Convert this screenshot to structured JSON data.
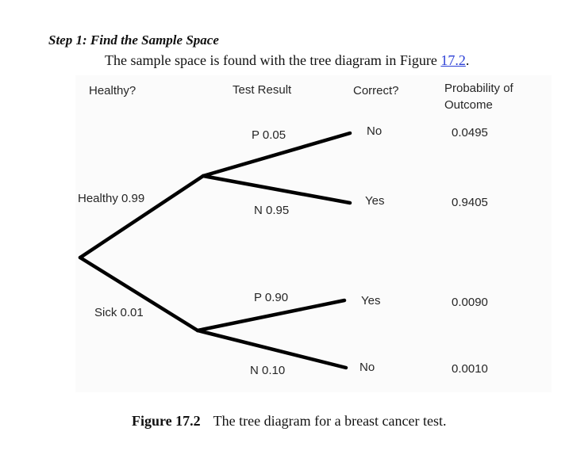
{
  "header": {
    "step_title": "Step 1: Find the Sample Space",
    "intro_text": "The sample space is found with the tree diagram in Figure ",
    "figure_link": "17.2",
    "intro_end": "."
  },
  "diagram": {
    "column_headers": {
      "healthy": "Healthy?",
      "test_result": "Test Result",
      "correct": "Correct?",
      "probability_line1": "Probability of",
      "probability_line2": "Outcome"
    },
    "first_level": {
      "healthy_branch": "Healthy 0.99",
      "sick_branch": "Sick 0.01"
    },
    "second_level": {
      "healthy_positive": "P 0.05",
      "healthy_negative": "N 0.95",
      "sick_positive": "P 0.90",
      "sick_negative": "N 0.10"
    },
    "correct_column": [
      "No",
      "Yes",
      "Yes",
      "No"
    ],
    "outcome_probabilities": [
      "0.0495",
      "0.9405",
      "0.0090",
      "0.0010"
    ],
    "line_color": "#000000"
  },
  "caption": {
    "figure_number": "Figure 17.2",
    "text": "The tree diagram for a breast cancer test."
  }
}
